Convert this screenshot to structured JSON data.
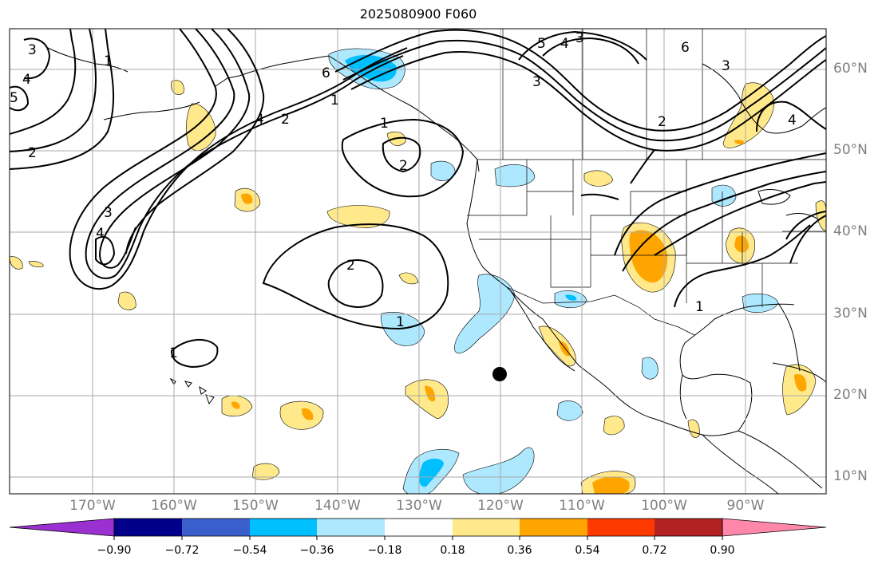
{
  "title": "2025080900 F060",
  "colors": {
    "ocean": "#ffffff",
    "grid": "#a9a9a9",
    "contour": "#000000",
    "marker": "#000000"
  },
  "longitude_labels": [
    "170°W",
    "160°W",
    "150°W",
    "140°W",
    "130°W",
    "120°W",
    "110°W",
    "100°W",
    "90°W"
  ],
  "latitude_labels": [
    "60°N",
    "50°N",
    "40°N",
    "30°N",
    "20°N",
    "10°N"
  ],
  "colorbar": {
    "ticks": [
      "−0.90",
      "−0.72",
      "−0.54",
      "−0.36",
      "−0.18",
      "0.18",
      "0.36",
      "0.54",
      "0.72",
      "0.90"
    ],
    "colors": [
      "#9b30d0",
      "#00008b",
      "#3a5fcd",
      "#00bfff",
      "#ade8ff",
      "#ffffff",
      "#ffe98a",
      "#ffa500",
      "#ff3a00",
      "#b22222",
      "#ff88aa"
    ]
  },
  "contour_labels": [
    "3",
    "4",
    "5",
    "1",
    "2",
    "6",
    "4",
    "2",
    "1",
    "2",
    "1",
    "2",
    "1",
    "3",
    "4",
    "1",
    "5",
    "4",
    "3",
    "3",
    "6",
    "3",
    "4",
    "1",
    "2"
  ],
  "marker": {
    "label": "",
    "lon": -120,
    "lat": 22.5
  }
}
